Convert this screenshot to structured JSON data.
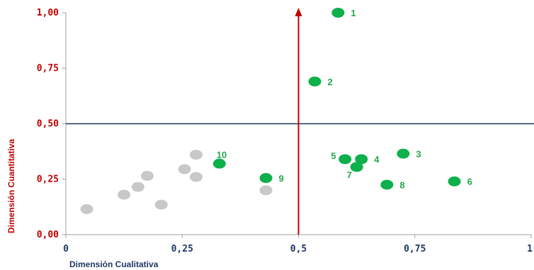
{
  "chart_data": {
    "type": "scatter",
    "xlabel": "Dimensión Cualitativa",
    "ylabel": "Dimensión Cuantitativa",
    "xlim": [
      0,
      1
    ],
    "ylim": [
      0,
      1
    ],
    "x_ticks": [
      "0",
      "0,25",
      "0,5",
      "0,75",
      "1"
    ],
    "y_ticks": [
      "0,00",
      "0,25",
      "0,50",
      "0,75",
      "1,00"
    ],
    "x_tick_values": [
      0,
      0.25,
      0.5,
      0.75,
      1
    ],
    "y_tick_values": [
      0,
      0.25,
      0.5,
      0.75,
      1
    ],
    "reference_lines": {
      "x": 0.5,
      "y": 0.5
    },
    "colors": {
      "highlight": "#0db04b",
      "other": "#c8c8c8",
      "y_axis": "#c00000",
      "x_axis": "#1f3864",
      "label": "#22a84a"
    },
    "series": [
      {
        "color": "#0db04b",
        "points": [
          {
            "label": "1",
            "x": 0.585,
            "y": 1.0
          },
          {
            "label": "2",
            "x": 0.535,
            "y": 0.69
          },
          {
            "label": "3",
            "x": 0.725,
            "y": 0.365
          },
          {
            "label": "4",
            "x": 0.635,
            "y": 0.34
          },
          {
            "label": "5",
            "x": 0.6,
            "y": 0.34
          },
          {
            "label": "6",
            "x": 0.835,
            "y": 0.24
          },
          {
            "label": "7",
            "x": 0.625,
            "y": 0.305
          },
          {
            "label": "8",
            "x": 0.69,
            "y": 0.225
          },
          {
            "label": "9",
            "x": 0.43,
            "y": 0.255
          },
          {
            "label": "10",
            "x": 0.33,
            "y": 0.32
          }
        ]
      },
      {
        "color": "#c8c8c8",
        "points": [
          {
            "x": 0.045,
            "y": 0.115
          },
          {
            "x": 0.125,
            "y": 0.18
          },
          {
            "x": 0.155,
            "y": 0.215
          },
          {
            "x": 0.175,
            "y": 0.265
          },
          {
            "x": 0.205,
            "y": 0.135
          },
          {
            "x": 0.255,
            "y": 0.295
          },
          {
            "x": 0.28,
            "y": 0.36
          },
          {
            "x": 0.28,
            "y": 0.26
          },
          {
            "x": 0.43,
            "y": 0.2
          }
        ]
      }
    ]
  }
}
